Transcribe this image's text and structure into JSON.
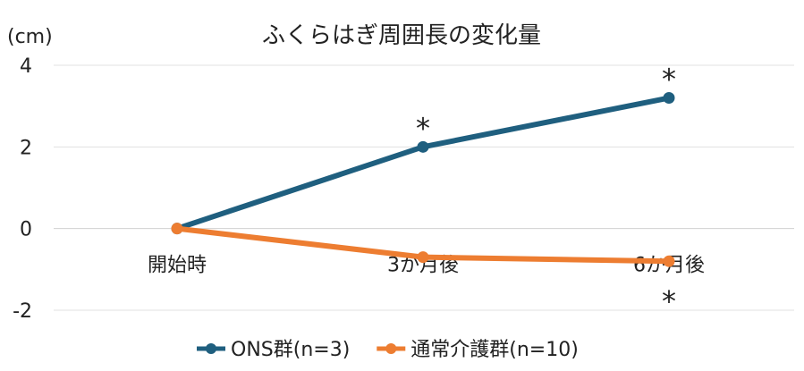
{
  "chart_data": {
    "type": "line",
    "title": "ふくらはぎ周囲長の変化量",
    "ylabel": "(cm)",
    "xlabel": "",
    "categories": [
      "開始時",
      "3か月後",
      "6か月後"
    ],
    "ylim": [
      -2,
      4
    ],
    "yticks": [
      4,
      2,
      0,
      -2
    ],
    "grid": true,
    "legend_position": "bottom",
    "series": [
      {
        "name": "ONS群(n=3)",
        "color": "#1f5f7f",
        "values": [
          0,
          2.0,
          3.2
        ]
      },
      {
        "name": "通常介護群(n=10)",
        "color": "#ed7d31",
        "values": [
          0,
          -0.7,
          -0.8
        ]
      }
    ],
    "annotations": [
      {
        "text": "*",
        "series": 0,
        "index": 1,
        "placement": "above"
      },
      {
        "text": "*",
        "series": 0,
        "index": 2,
        "placement": "above"
      },
      {
        "text": "*",
        "series": 1,
        "index": 2,
        "placement": "below"
      }
    ]
  }
}
